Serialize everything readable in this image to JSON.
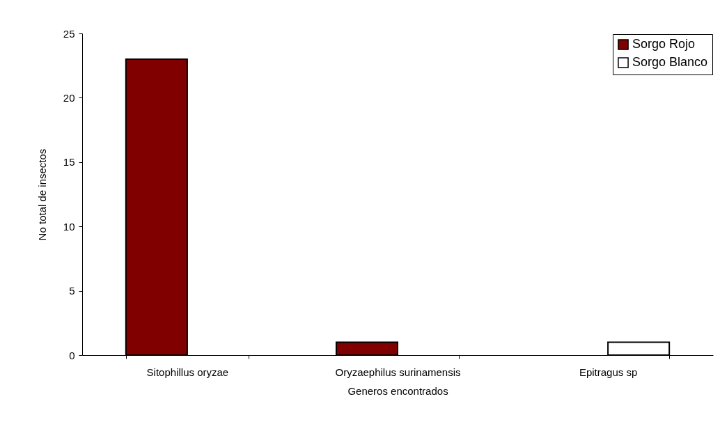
{
  "chart_data": {
    "type": "bar",
    "xlabel": "Generos encontrados",
    "ylabel": "No total de insectos",
    "categories": [
      "Sitophillus oryzae",
      "Oryzaephilus surinamensis",
      "Epitragus sp"
    ],
    "series": [
      {
        "name": "Sorgo Rojo",
        "color": "#800000",
        "values": [
          23,
          1,
          null
        ]
      },
      {
        "name": "Sorgo Blanco",
        "color": "#ffffff",
        "values": [
          null,
          null,
          1
        ]
      }
    ],
    "ylim": [
      0,
      25
    ],
    "yticks": [
      0,
      5,
      10,
      15,
      20,
      25
    ],
    "grid": false,
    "legend": "top right"
  }
}
